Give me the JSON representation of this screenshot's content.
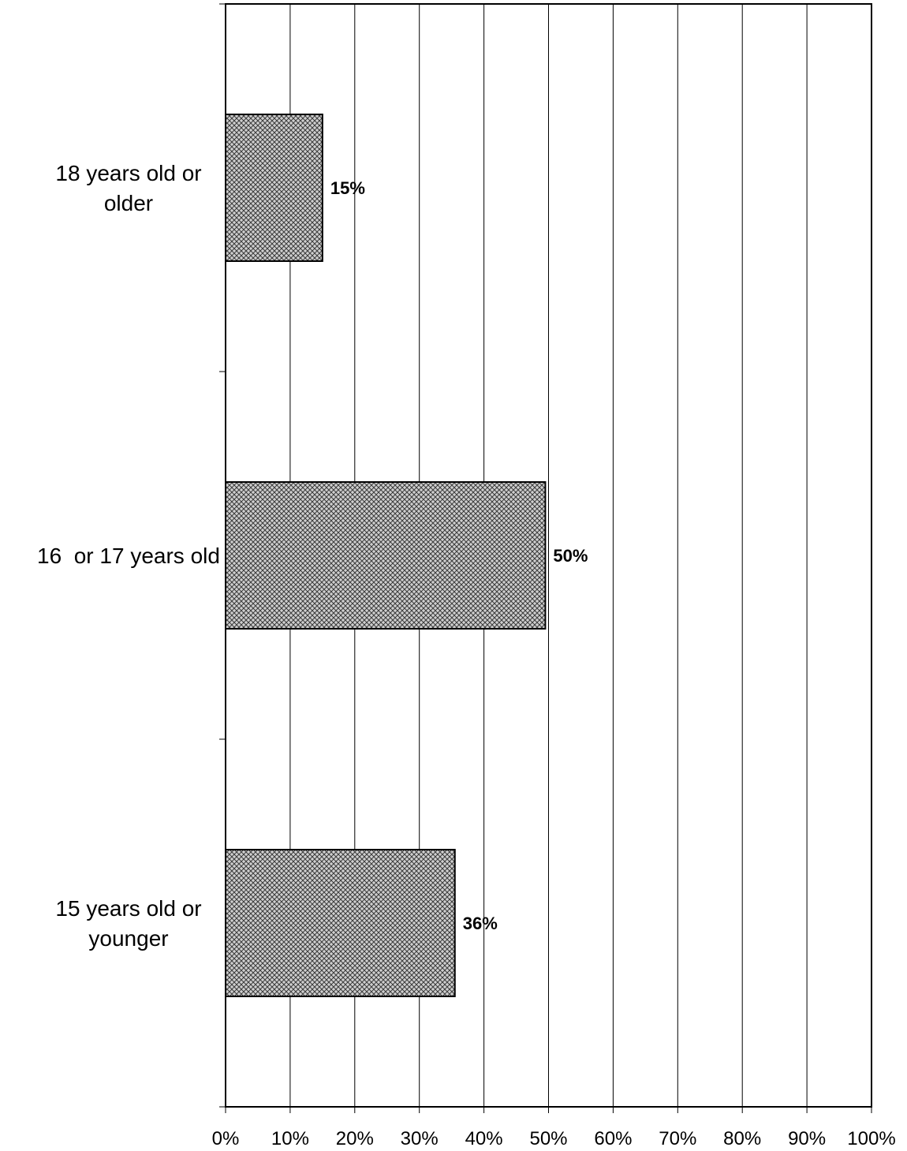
{
  "chart_data": {
    "type": "bar",
    "orientation": "horizontal",
    "categories": [
      [
        "15 years old or",
        "younger"
      ],
      [
        "16  or 17 years old"
      ],
      [
        "18 years old or",
        "older"
      ]
    ],
    "values": [
      35.5,
      49.5,
      15
    ],
    "data_labels": [
      "36%",
      "50%",
      "15%"
    ],
    "title": "",
    "xlabel": "",
    "ylabel": "",
    "xlim": [
      0,
      100
    ],
    "x_ticks": [
      0,
      10,
      20,
      30,
      40,
      50,
      60,
      70,
      80,
      90,
      100
    ],
    "x_tick_labels": [
      "0%",
      "10%",
      "20%",
      "30%",
      "40%",
      "50%",
      "60%",
      "70%",
      "80%",
      "90%",
      "100%"
    ],
    "grid": "vertical",
    "legend": "none",
    "bar_pattern": "crosshatch",
    "colors": {
      "bar_fill": "#c8c8c8",
      "bar_hatch": "#3a3a3a",
      "bar_stroke": "#000000",
      "grid": "#000000",
      "axis": "#000000"
    }
  }
}
